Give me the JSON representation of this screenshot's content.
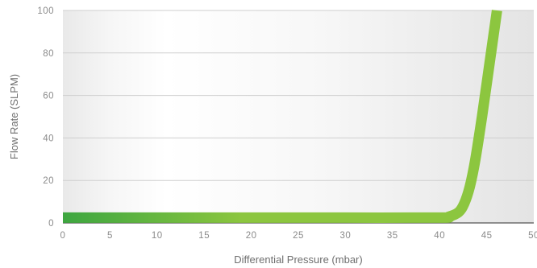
{
  "chart_data": {
    "type": "line",
    "xlabel": "Differential Pressure (mbar)",
    "ylabel": "Flow Rate (SLPM)",
    "xlim": [
      0,
      50
    ],
    "ylim": [
      0,
      100
    ],
    "x_ticks": [
      0,
      5,
      10,
      15,
      20,
      25,
      30,
      35,
      40,
      45,
      50
    ],
    "y_ticks": [
      0,
      20,
      40,
      60,
      80,
      100
    ],
    "grid": true,
    "colors": {
      "line_start": "#3da640",
      "line_end": "#8cc63f",
      "gridline": "#cfcfcf",
      "baseline": "#555555",
      "plot_shade": "#e6e6e6"
    },
    "series": [
      {
        "x": [
          0,
          10,
          20,
          30,
          40,
          41,
          42,
          42.6,
          43.2,
          43.8,
          44.5,
          45.3,
          46.1
        ],
        "y": [
          2.5,
          2.5,
          2.5,
          2.5,
          2.5,
          3,
          5,
          9,
          17,
          30,
          50,
          75,
          100
        ]
      }
    ]
  }
}
